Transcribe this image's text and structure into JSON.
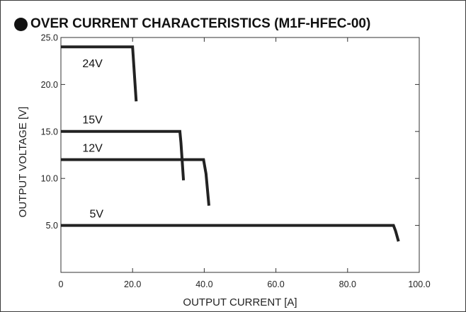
{
  "chart_data": {
    "type": "line",
    "title": "OVER CURRENT CHARACTERISTICS (M1F-HFEC-00)",
    "xlabel": "OUTPUT CURRENT [A]",
    "ylabel": "OUTPUT VOLTAGE [V]",
    "xlim": [
      0,
      100
    ],
    "ylim": [
      0,
      25
    ],
    "x_ticks": [
      "0",
      "20.0",
      "40.0",
      "60.0",
      "80.0",
      "100.0"
    ],
    "x_tick_values": [
      0,
      20,
      40,
      60,
      80,
      100
    ],
    "y_ticks": [
      "5.0",
      "10.0",
      "15.0",
      "20.0",
      "25.0"
    ],
    "y_tick_values": [
      5,
      10,
      15,
      20,
      25
    ],
    "grid": false,
    "line_color": "#222222",
    "series": [
      {
        "name": "24V",
        "x": [
          0,
          20.0,
          21.0
        ],
        "y": [
          24.0,
          24.0,
          18.2
        ],
        "label_at": [
          6,
          22.3
        ]
      },
      {
        "name": "15V",
        "x": [
          0,
          33.2,
          33.5,
          34.2
        ],
        "y": [
          15.0,
          15.0,
          13.8,
          9.8
        ],
        "label_at": [
          6,
          16.3
        ]
      },
      {
        "name": "12V",
        "x": [
          0,
          39.8,
          40.5,
          41.3
        ],
        "y": [
          12.0,
          12.0,
          10.5,
          7.1
        ],
        "label_at": [
          6,
          13.3
        ]
      },
      {
        "name": "5V",
        "x": [
          0,
          92.8,
          93.4,
          94.2
        ],
        "y": [
          5.0,
          5.0,
          4.4,
          3.3
        ],
        "label_at": [
          8,
          6.3
        ]
      }
    ]
  }
}
